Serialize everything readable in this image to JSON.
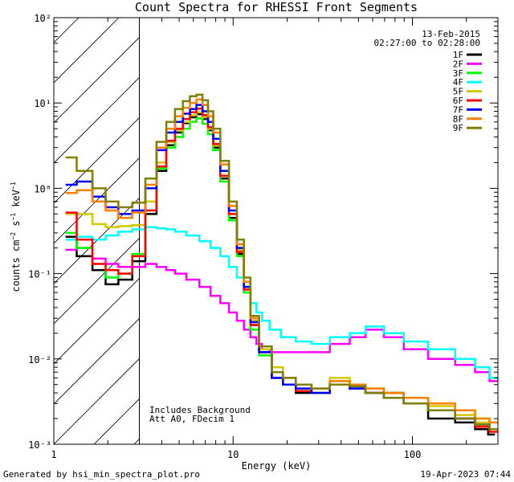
{
  "chart_data": {
    "type": "line",
    "title": "Count Spectra for RHESSI Front Segments",
    "xlabel": "Energy (keV)",
    "ylabel": "counts cm⁻² s⁻¹ keV⁻¹",
    "xscale": "log",
    "yscale": "log",
    "xlim": [
      1,
      300
    ],
    "ylim": [
      0.001,
      100
    ],
    "x_ticks": [
      {
        "value": 1,
        "label": "1"
      },
      {
        "value": 10,
        "label": "10"
      },
      {
        "value": 100,
        "label": "100"
      }
    ],
    "y_ticks": [
      {
        "value": 0.001,
        "label": "10⁻³"
      },
      {
        "value": 0.01,
        "label": "10⁻²"
      },
      {
        "value": 0.1,
        "label": "10⁻¹"
      },
      {
        "value": 1,
        "label": "10⁰"
      },
      {
        "value": 10,
        "label": "10¹"
      },
      {
        "value": 100,
        "label": "10²"
      }
    ],
    "date": "13-Feb-2015",
    "time_range": "02:27:00 to 02:28:00",
    "hatched_region_keV": [
      1,
      3
    ],
    "annotations": [
      "Includes Background",
      "Att A0, FDecim 1"
    ],
    "legend_position": "top-right",
    "series": [
      {
        "name": "1F",
        "color": "#000000",
        "x": [
          1.2,
          1.5,
          1.8,
          2.1,
          2.5,
          3.0,
          3.5,
          4.0,
          4.5,
          5.0,
          5.5,
          6.0,
          6.5,
          7.0,
          7.5,
          8.0,
          9.0,
          10,
          11,
          12,
          13,
          15,
          18,
          20,
          25,
          30,
          40,
          50,
          60,
          80,
          100,
          150,
          200,
          250,
          280
        ],
        "y": [
          0.27,
          0.16,
          0.11,
          0.075,
          0.085,
          0.14,
          0.5,
          1.6,
          3.2,
          4.5,
          5.8,
          6.8,
          7.4,
          6.5,
          4.8,
          3.0,
          1.3,
          0.45,
          0.17,
          0.06,
          0.025,
          0.012,
          0.006,
          0.005,
          0.004,
          0.004,
          0.005,
          0.0045,
          0.004,
          0.004,
          0.003,
          0.002,
          0.0018,
          0.0015,
          0.0013
        ]
      },
      {
        "name": "2F",
        "color": "#ff00ff",
        "x": [
          1.2,
          1.5,
          1.8,
          2.1,
          2.5,
          3.0,
          3.5,
          4.0,
          4.5,
          5.0,
          6.0,
          7.0,
          8.0,
          9.0,
          10,
          11,
          12,
          13,
          14,
          15,
          17,
          20,
          25,
          30,
          40,
          50,
          60,
          80,
          100,
          150,
          200,
          250,
          290
        ],
        "y": [
          0.19,
          0.2,
          0.15,
          0.13,
          0.12,
          0.12,
          0.13,
          0.12,
          0.11,
          0.1,
          0.085,
          0.07,
          0.055,
          0.045,
          0.035,
          0.028,
          0.022,
          0.018,
          0.015,
          0.013,
          0.012,
          0.012,
          0.012,
          0.012,
          0.015,
          0.018,
          0.022,
          0.018,
          0.013,
          0.01,
          0.0085,
          0.007,
          0.0055
        ]
      },
      {
        "name": "3F",
        "color": "#00ff00",
        "x": [
          1.2,
          1.5,
          1.8,
          2.1,
          2.5,
          3.0,
          3.5,
          4.0,
          4.5,
          5.0,
          5.5,
          6.0,
          6.5,
          7.0,
          7.5,
          8.0,
          9.0,
          10,
          11,
          12,
          13,
          15,
          18,
          20,
          25,
          30,
          40,
          50,
          60,
          80,
          100,
          150,
          200,
          250,
          290
        ],
        "y": [
          0.3,
          0.2,
          0.13,
          0.09,
          0.1,
          0.17,
          0.55,
          1.7,
          3.0,
          4.0,
          5.0,
          6.0,
          6.6,
          5.7,
          4.3,
          2.8,
          1.2,
          0.42,
          0.16,
          0.06,
          0.022,
          0.011,
          0.006,
          0.005,
          0.005,
          0.004,
          0.0055,
          0.005,
          0.0045,
          0.004,
          0.0035,
          0.003,
          0.0025,
          0.002,
          0.0018
        ]
      },
      {
        "name": "4F",
        "color": "#00ffff",
        "x": [
          1.2,
          1.5,
          1.8,
          2.1,
          2.5,
          3.0,
          3.5,
          4.0,
          4.5,
          5.0,
          6.0,
          7.0,
          8.0,
          9.0,
          10,
          11,
          12,
          13,
          14,
          15,
          17,
          20,
          25,
          30,
          40,
          50,
          60,
          80,
          100,
          150,
          200,
          250,
          290
        ],
        "y": [
          0.25,
          0.27,
          0.25,
          0.28,
          0.31,
          0.33,
          0.35,
          0.34,
          0.33,
          0.31,
          0.28,
          0.24,
          0.2,
          0.16,
          0.12,
          0.09,
          0.065,
          0.045,
          0.035,
          0.028,
          0.022,
          0.018,
          0.016,
          0.015,
          0.018,
          0.02,
          0.024,
          0.02,
          0.016,
          0.013,
          0.01,
          0.008,
          0.006
        ]
      },
      {
        "name": "5F",
        "color": "#d2c800",
        "x": [
          1.2,
          1.5,
          1.8,
          2.1,
          2.5,
          3.0,
          3.5,
          4.0,
          4.5,
          5.0,
          5.5,
          6.0,
          6.5,
          7.0,
          7.5,
          8.0,
          9.0,
          10,
          11,
          12,
          13,
          15,
          18,
          20,
          25,
          30,
          40,
          50,
          60,
          80,
          100,
          150,
          200,
          250,
          290
        ],
        "y": [
          0.5,
          0.5,
          0.38,
          0.35,
          0.36,
          0.37,
          0.7,
          2.0,
          3.5,
          4.8,
          6.0,
          7.2,
          7.8,
          6.8,
          5.0,
          3.2,
          1.4,
          0.5,
          0.19,
          0.07,
          0.028,
          0.013,
          0.008,
          0.006,
          0.005,
          0.004,
          0.006,
          0.005,
          0.0045,
          0.004,
          0.0035,
          0.0028,
          0.0022,
          0.0018,
          0.0015
        ]
      },
      {
        "name": "6F",
        "color": "#ff0000",
        "x": [
          1.2,
          1.5,
          1.8,
          2.1,
          2.5,
          3.0,
          3.5,
          4.0,
          4.5,
          5.0,
          5.5,
          6.0,
          6.5,
          7.0,
          7.5,
          8.0,
          9.0,
          10,
          11,
          12,
          13,
          15,
          18,
          20,
          25,
          30,
          40,
          50,
          60,
          80,
          100,
          150,
          200,
          250,
          290
        ],
        "y": [
          0.52,
          0.25,
          0.13,
          0.11,
          0.1,
          0.16,
          0.55,
          1.8,
          3.6,
          5.0,
          6.5,
          7.8,
          8.6,
          7.2,
          5.2,
          3.3,
          1.4,
          0.5,
          0.18,
          0.065,
          0.025,
          0.012,
          0.006,
          0.005,
          0.0042,
          0.004,
          0.005,
          0.0045,
          0.004,
          0.004,
          0.003,
          0.0025,
          0.002,
          0.0016,
          0.0014
        ]
      },
      {
        "name": "7F",
        "color": "#0000ff",
        "x": [
          1.2,
          1.5,
          1.8,
          2.1,
          2.5,
          3.0,
          3.5,
          4.0,
          4.5,
          5.0,
          5.5,
          6.0,
          6.5,
          7.0,
          7.5,
          8.0,
          9.0,
          10,
          11,
          12,
          13,
          15,
          18,
          20,
          25,
          30,
          40,
          50,
          60,
          80,
          100,
          150,
          200,
          250,
          290
        ],
        "y": [
          1.1,
          1.2,
          0.8,
          0.6,
          0.5,
          0.55,
          1.0,
          2.8,
          4.5,
          6.0,
          7.5,
          8.5,
          9.5,
          8.0,
          6.0,
          3.8,
          1.6,
          0.55,
          0.2,
          0.07,
          0.027,
          0.012,
          0.006,
          0.005,
          0.0045,
          0.004,
          0.005,
          0.0045,
          0.004,
          0.0035,
          0.003,
          0.0025,
          0.002,
          0.0017,
          0.0015
        ]
      },
      {
        "name": "8F",
        "color": "#ff8000",
        "x": [
          1.2,
          1.5,
          1.8,
          2.1,
          2.5,
          3.0,
          3.5,
          4.0,
          4.5,
          5.0,
          5.5,
          6.0,
          6.5,
          7.0,
          7.5,
          8.0,
          9.0,
          10,
          11,
          12,
          13,
          15,
          18,
          20,
          25,
          30,
          40,
          50,
          60,
          80,
          100,
          150,
          200,
          250,
          290
        ],
        "y": [
          0.88,
          0.95,
          0.7,
          0.55,
          0.45,
          0.52,
          1.1,
          3.0,
          5.0,
          7.0,
          8.8,
          10.0,
          11.0,
          9.5,
          7.0,
          4.5,
          1.9,
          0.62,
          0.22,
          0.08,
          0.03,
          0.014,
          0.007,
          0.006,
          0.005,
          0.0045,
          0.0055,
          0.005,
          0.0045,
          0.004,
          0.0035,
          0.003,
          0.0025,
          0.002,
          0.0018
        ]
      },
      {
        "name": "9F",
        "color": "#808000",
        "x": [
          1.2,
          1.5,
          1.8,
          2.1,
          2.5,
          3.0,
          3.5,
          4.0,
          4.5,
          5.0,
          5.5,
          6.0,
          6.5,
          7.0,
          7.5,
          8.0,
          9.0,
          10,
          11,
          12,
          13,
          15,
          18,
          20,
          25,
          30,
          40,
          50,
          60,
          80,
          100,
          150,
          200,
          250,
          290
        ],
        "y": [
          2.3,
          1.6,
          1.0,
          0.7,
          0.6,
          0.68,
          1.3,
          3.5,
          6.0,
          8.5,
          10.5,
          12.0,
          12.5,
          10.8,
          8.0,
          5.0,
          2.1,
          0.7,
          0.25,
          0.09,
          0.032,
          0.014,
          0.007,
          0.006,
          0.005,
          0.0045,
          0.005,
          0.0048,
          0.004,
          0.0035,
          0.003,
          0.0025,
          0.002,
          0.0017,
          0.0015
        ]
      }
    ]
  },
  "footer": {
    "left": "Generated by hsi_min_spectra_plot.pro",
    "right": "19-Apr-2023 07:44"
  }
}
